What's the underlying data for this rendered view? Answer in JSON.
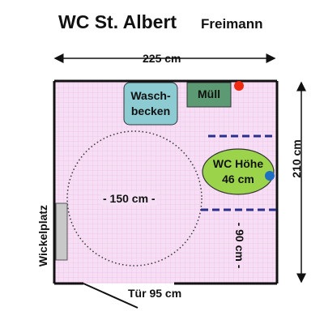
{
  "header": {
    "title": "WC St. Albert",
    "subtitle": "Freimann"
  },
  "dimensions": {
    "width": "225 cm",
    "depth": "210 cm",
    "turning_circle": "- 150 cm -",
    "side_gap": "- 90 cm -",
    "door": "Tür 95 cm"
  },
  "fixtures": {
    "sink_line1": "Wasch-",
    "sink_line2": "becken",
    "bin": "Müll",
    "toilet_line1": "WC Höhe",
    "toilet_line2": "46 cm",
    "changing_table": "Wickelplatz"
  },
  "colors": {
    "floor": "#f6dff4",
    "grid": "#f3c3ee",
    "sink": "#8ccbd2",
    "bin": "#5b9a73",
    "toilet": "#9bd44b",
    "grab_bar": "#2a2e8c",
    "changing_table": "#c8c8c8",
    "red_marker": "#ee2a10",
    "blue_marker": "#1d6fc4"
  }
}
